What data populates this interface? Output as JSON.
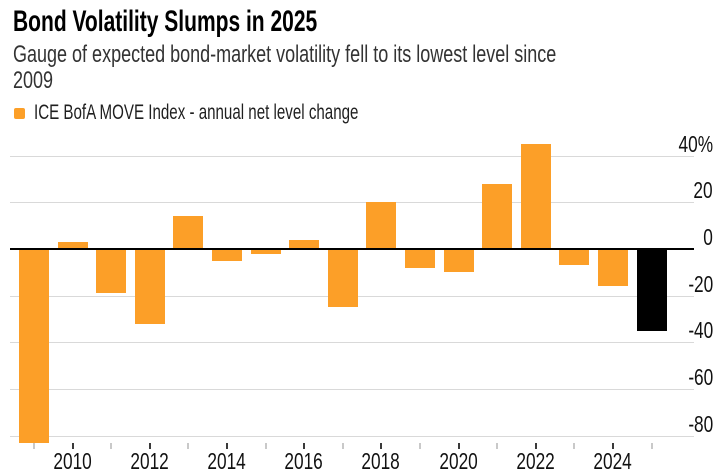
{
  "header": {
    "title": "Bond Volatility Slumps in 2025",
    "subtitle_line1": "Gauge of expected bond-market volatility fell to its lowest level since",
    "subtitle_line2": "2009"
  },
  "legend": {
    "label": "ICE BofA MOVE Index - annual net level change",
    "swatch_color": "#FC9F28"
  },
  "chart_data": {
    "type": "bar",
    "title": "Bond Volatility Slumps in 2025",
    "subtitle": "Gauge of expected bond-market volatility fell to its lowest level since 2009",
    "series_name": "ICE BofA MOVE Index - annual net level change",
    "unit": "%",
    "categories": [
      "2009",
      "2010",
      "2011",
      "2012",
      "2013",
      "2014",
      "2015",
      "2016",
      "2017",
      "2018",
      "2019",
      "2020",
      "2021",
      "2022",
      "2023",
      "2024",
      "2025"
    ],
    "values": [
      -83,
      3,
      -19,
      -32,
      14,
      -5,
      -2,
      4,
      -25,
      20,
      -8,
      -10,
      28,
      45,
      -7,
      -16,
      -35
    ],
    "bar_color": "#FC9F28",
    "highlight_category": "2025",
    "highlight_color": "#000000",
    "y_ticks": [
      40,
      20,
      0,
      -20,
      -40,
      -60,
      -80
    ],
    "y_tick_labels": [
      "40%",
      "20",
      "0",
      "-20",
      "-40",
      "-60",
      "-80"
    ],
    "x_tick_labels": [
      "2010",
      "2012",
      "2014",
      "2016",
      "2018",
      "2020",
      "2022",
      "2024"
    ],
    "ylim": [
      -88,
      47
    ],
    "grid": "horizontal",
    "axis_side": "right",
    "legend_position": "top-left",
    "zero_line": true,
    "grid_color": "#d9d9d9",
    "text_color": "#111111"
  }
}
